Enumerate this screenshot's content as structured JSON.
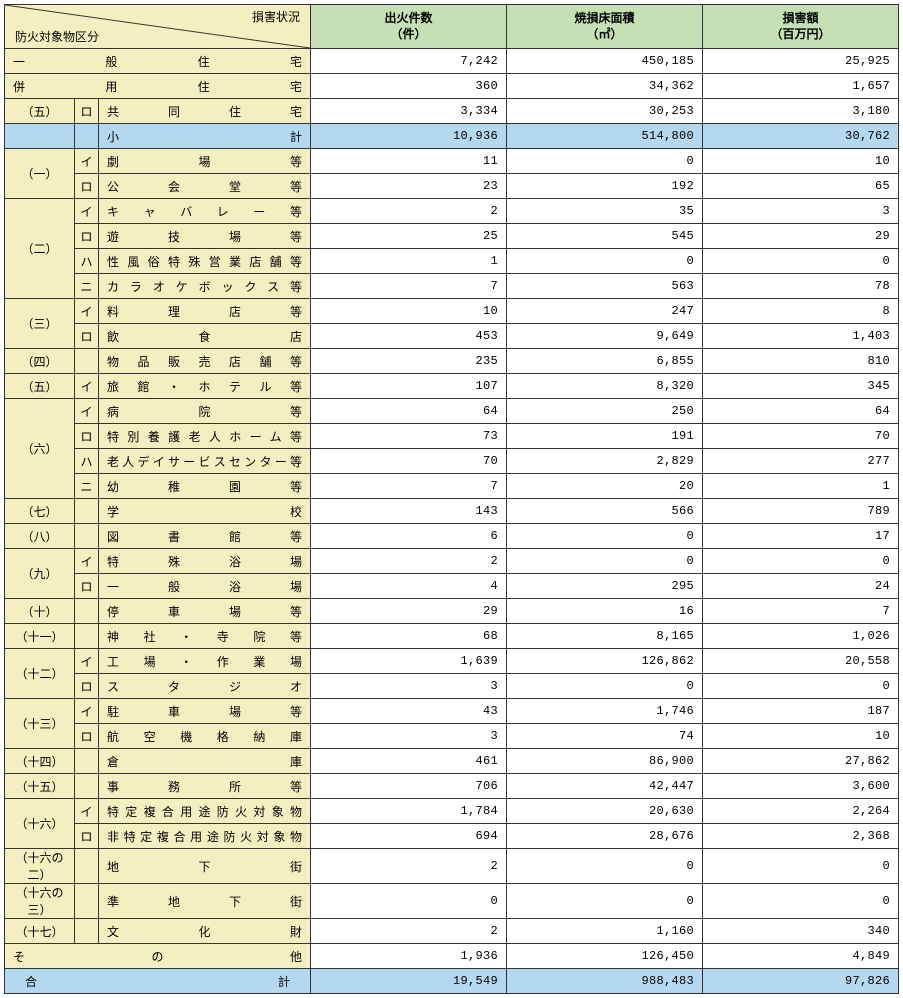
{
  "header": {
    "diag_top": "損害状況",
    "diag_bottom": "防火対象物区分",
    "col1": "出火件数\n（件）",
    "col2": "焼損床面積\n（㎡）",
    "col3": "損害額\n（百万円）"
  },
  "layout": {
    "col_widths": {
      "cat": 70,
      "sub": 24,
      "name": 212,
      "num": 196
    }
  },
  "rows": [
    {
      "type": "merged3",
      "name": "一般住宅",
      "v": [
        "7,242",
        "450,185",
        "25,925"
      ]
    },
    {
      "type": "merged3",
      "name": "併用住宅",
      "v": [
        "360",
        "34,362",
        "1,657"
      ]
    },
    {
      "type": "catsub",
      "cat": "（五）",
      "catspan": 1,
      "sub": "ロ",
      "name": "共同住宅",
      "v": [
        "3,334",
        "30,253",
        "3,180"
      ]
    },
    {
      "type": "subtotal",
      "name": "小計",
      "v": [
        "10,936",
        "514,800",
        "30,762"
      ]
    },
    {
      "type": "catsub",
      "cat": "（一）",
      "catspan": 2,
      "sub": "イ",
      "name": "劇場等",
      "v": [
        "11",
        "0",
        "10"
      ]
    },
    {
      "type": "sub",
      "sub": "ロ",
      "name": "公会堂等",
      "v": [
        "23",
        "192",
        "65"
      ]
    },
    {
      "type": "catsub",
      "cat": "（二）",
      "catspan": 4,
      "sub": "イ",
      "name": "キャバレー等",
      "v": [
        "2",
        "35",
        "3"
      ]
    },
    {
      "type": "sub",
      "sub": "ロ",
      "name": "遊技場等",
      "v": [
        "25",
        "545",
        "29"
      ]
    },
    {
      "type": "sub",
      "sub": "ハ",
      "name": "性風俗特殊営業店舗等",
      "v": [
        "1",
        "0",
        "0"
      ]
    },
    {
      "type": "sub",
      "sub": "ニ",
      "name": "カラオケボックス等",
      "v": [
        "7",
        "563",
        "78"
      ]
    },
    {
      "type": "catsub",
      "cat": "（三）",
      "catspan": 2,
      "sub": "イ",
      "name": "料理店等",
      "v": [
        "10",
        "247",
        "8"
      ]
    },
    {
      "type": "sub",
      "sub": "ロ",
      "name": "飲食店",
      "v": [
        "453",
        "9,649",
        "1,403"
      ]
    },
    {
      "type": "catnosub",
      "cat": "（四）",
      "name": "物品販売店舗等",
      "v": [
        "235",
        "6,855",
        "810"
      ]
    },
    {
      "type": "catsub",
      "cat": "（五）",
      "catspan": 1,
      "sub": "イ",
      "name": "旅館・ホテル等",
      "v": [
        "107",
        "8,320",
        "345"
      ]
    },
    {
      "type": "catsub",
      "cat": "（六）",
      "catspan": 4,
      "sub": "イ",
      "name": "病院等",
      "v": [
        "64",
        "250",
        "64"
      ]
    },
    {
      "type": "sub",
      "sub": "ロ",
      "name": "特別養護老人ホーム等",
      "v": [
        "73",
        "191",
        "70"
      ]
    },
    {
      "type": "sub",
      "sub": "ハ",
      "name": "老人デイサービスセンター等",
      "v": [
        "70",
        "2,829",
        "277"
      ]
    },
    {
      "type": "sub",
      "sub": "ニ",
      "name": "幼稚園等",
      "v": [
        "7",
        "20",
        "1"
      ]
    },
    {
      "type": "catnosub",
      "cat": "（七）",
      "name": "学校",
      "v": [
        "143",
        "566",
        "789"
      ]
    },
    {
      "type": "catnosub",
      "cat": "（八）",
      "name": "図書館等",
      "v": [
        "6",
        "0",
        "17"
      ]
    },
    {
      "type": "catsub",
      "cat": "（九）",
      "catspan": 2,
      "sub": "イ",
      "name": "特殊浴場",
      "v": [
        "2",
        "0",
        "0"
      ]
    },
    {
      "type": "sub",
      "sub": "ロ",
      "name": "一般浴場",
      "v": [
        "4",
        "295",
        "24"
      ]
    },
    {
      "type": "catnosub",
      "cat": "（十）",
      "name": "停車場等",
      "v": [
        "29",
        "16",
        "7"
      ]
    },
    {
      "type": "catnosub",
      "cat": "（十一）",
      "name": "神社・寺院等",
      "v": [
        "68",
        "8,165",
        "1,026"
      ]
    },
    {
      "type": "catsub",
      "cat": "（十二）",
      "catspan": 2,
      "sub": "イ",
      "name": "工場・作業場",
      "v": [
        "1,639",
        "126,862",
        "20,558"
      ]
    },
    {
      "type": "sub",
      "sub": "ロ",
      "name": "スタジオ",
      "v": [
        "3",
        "0",
        "0"
      ]
    },
    {
      "type": "catsub",
      "cat": "（十三）",
      "catspan": 2,
      "sub": "イ",
      "name": "駐車場等",
      "v": [
        "43",
        "1,746",
        "187"
      ]
    },
    {
      "type": "sub",
      "sub": "ロ",
      "name": "航空機格納庫",
      "v": [
        "3",
        "74",
        "10"
      ]
    },
    {
      "type": "catnosub",
      "cat": "（十四）",
      "name": "倉庫",
      "v": [
        "461",
        "86,900",
        "27,862"
      ]
    },
    {
      "type": "catnosub",
      "cat": "（十五）",
      "name": "事務所等",
      "v": [
        "706",
        "42,447",
        "3,600"
      ]
    },
    {
      "type": "catsub",
      "cat": "（十六）",
      "catspan": 2,
      "sub": "イ",
      "name": "特定複合用途防火対象物",
      "v": [
        "1,784",
        "20,630",
        "2,264"
      ]
    },
    {
      "type": "sub",
      "sub": "ロ",
      "name": "非特定複合用途防火対象物",
      "v": [
        "694",
        "28,676",
        "2,368"
      ]
    },
    {
      "type": "catnosub",
      "cat": "（十六の二）",
      "name": "地下街",
      "v": [
        "2",
        "0",
        "0"
      ]
    },
    {
      "type": "catnosub",
      "cat": "（十六の三）",
      "name": "準地下街",
      "v": [
        "0",
        "0",
        "0"
      ]
    },
    {
      "type": "catnosub",
      "cat": "（十七）",
      "name": "文化財",
      "v": [
        "2",
        "1,160",
        "340"
      ]
    },
    {
      "type": "merged3",
      "name": "その他",
      "v": [
        "1,936",
        "126,450",
        "4,849"
      ]
    },
    {
      "type": "total",
      "name": "合計",
      "v": [
        "19,549",
        "988,483",
        "97,826"
      ]
    }
  ]
}
